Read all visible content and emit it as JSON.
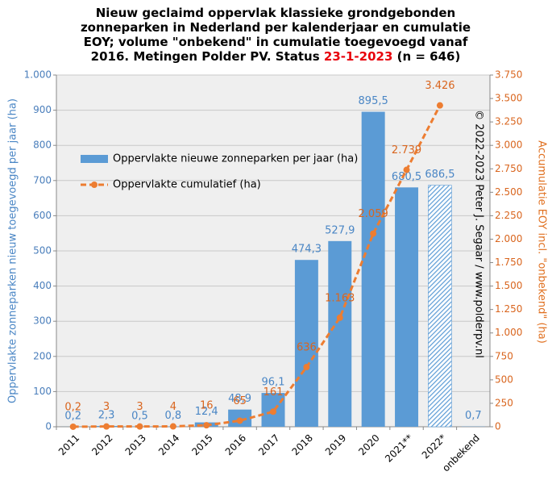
{
  "chart_data": {
    "type": "bar",
    "title": [
      "Nieuw geclaimd oppervlak klassieke grondgebonden",
      "zonneparken in Nederland per kalenderjaar en cumulatie",
      "EOY; volume \"onbekend\" in cumulatie toegevoegd vanaf",
      "2016. Metingen Polder PV. Status"
    ],
    "title_date": "23-1-2023",
    "title_tail": "(n = 646)",
    "y_label": "Oppervlakte zonneparken nieuw toegevoegd per jaar (ha)",
    "y2_label": "Accumulatie EOY incl. \"onbekend\" (ha)",
    "annotation": "© 2022-2023 Peter J. Segaar / www.polderpv.nl",
    "categories": [
      "2011",
      "2012",
      "2013",
      "2014",
      "2015",
      "2016",
      "2017",
      "2018",
      "2019",
      "2020",
      "2021**",
      "2022*",
      "onbekend"
    ],
    "series": [
      {
        "name": "Oppervlakte nieuwe zonneparken per jaar (ha)",
        "type": "bar",
        "color": "#5b9bd5",
        "hatched": [
          false,
          false,
          false,
          false,
          false,
          false,
          false,
          false,
          false,
          false,
          false,
          true,
          false
        ],
        "values": [
          0.2,
          2.3,
          0.5,
          0.8,
          12.4,
          48.9,
          96.1,
          474.3,
          527.9,
          895.5,
          680.5,
          686.5,
          0.7
        ],
        "value_labels": [
          "0,2",
          "2,3",
          "0,5",
          "0,8",
          "12,4",
          "48,9",
          "96,1",
          "474,3",
          "527,9",
          "895,5",
          "680,5",
          "686,5",
          "0,7"
        ]
      },
      {
        "name": "Oppervlakte cumulatief (ha)",
        "type": "line",
        "axis": "y2",
        "color": "#ed7d31",
        "dashed": true,
        "values": [
          0.2,
          3,
          3,
          4,
          16,
          65,
          161,
          636,
          1163,
          2059,
          2739,
          3426,
          null
        ],
        "value_labels": [
          "0,2",
          "3",
          "3",
          "4",
          "16",
          "65",
          "161",
          "636",
          "1.163",
          "2.059",
          "2.739",
          "3.426",
          null
        ]
      }
    ],
    "ylim": [
      0,
      1000
    ],
    "yticks": [
      0,
      100,
      200,
      300,
      400,
      500,
      600,
      700,
      800,
      900,
      {
        "value": 1000,
        "label": "1.000"
      }
    ],
    "y2lim": [
      0,
      3750
    ],
    "y2ticks": [
      0,
      250,
      500,
      750,
      {
        "value": 1000,
        "label": "1.000"
      },
      {
        "value": 1250,
        "label": "1.250"
      },
      {
        "value": 1500,
        "label": "1.500"
      },
      {
        "value": 1750,
        "label": "1.750"
      },
      {
        "value": 2000,
        "label": "2.000"
      },
      {
        "value": 2250,
        "label": "2.250"
      },
      {
        "value": 2500,
        "label": "2.500"
      },
      {
        "value": 2750,
        "label": "2.750"
      },
      {
        "value": 3000,
        "label": "3.000"
      },
      {
        "value": 3250,
        "label": "3.250"
      },
      {
        "value": 3500,
        "label": "3.500"
      },
      {
        "value": 3750,
        "label": "3.750"
      }
    ],
    "grid": true,
    "legend": "upper left"
  }
}
